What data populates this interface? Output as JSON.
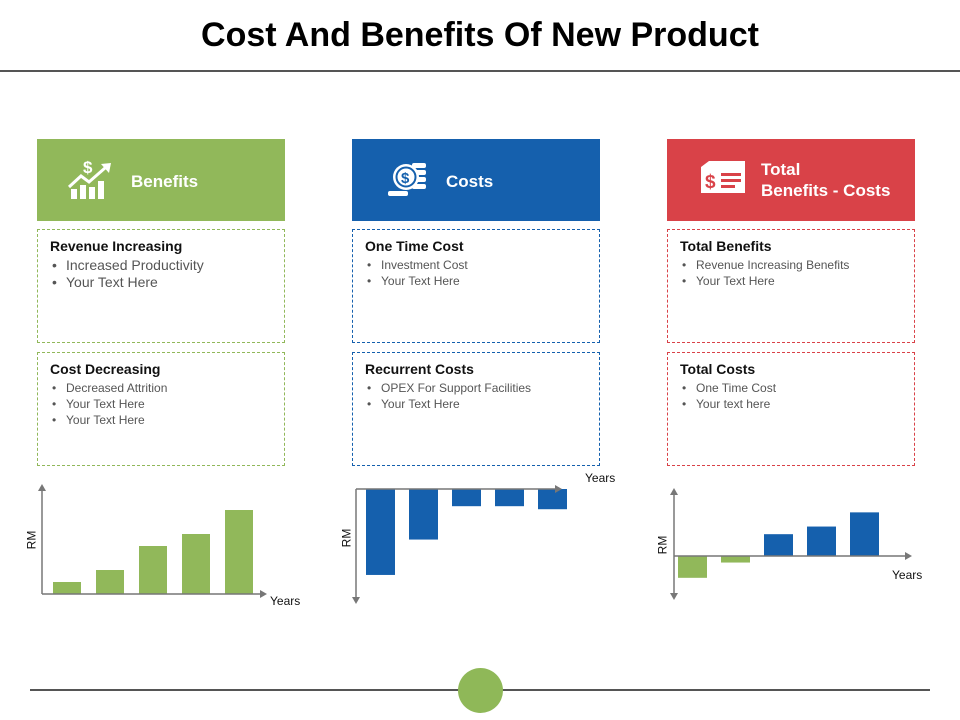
{
  "title": "Cost And Benefits Of New Product",
  "colors": {
    "green": "#91b85a",
    "blue": "#1560ad",
    "red": "#d94248",
    "axis": "#777777"
  },
  "columns": [
    {
      "header": "Benefits",
      "icon": "growth-chart-dollar-icon",
      "boxes": [
        {
          "title": "Revenue Increasing",
          "items": [
            "Increased Productivity",
            "Your Text Here"
          ]
        },
        {
          "title": "Cost Decreasing",
          "items": [
            "Decreased Attrition",
            "Your Text Here",
            "Your Text Here"
          ]
        }
      ]
    },
    {
      "header": "Costs",
      "icon": "coins-stack-dollar-icon",
      "boxes": [
        {
          "title": "One Time Cost",
          "items": [
            "Investment Cost",
            "Your Text Here"
          ]
        },
        {
          "title": "Recurrent Costs",
          "items": [
            "OPEX For Support Facilities",
            "Your Text Here"
          ]
        }
      ]
    },
    {
      "header_line1": "Total",
      "header_line2": "Benefits - Costs",
      "icon": "check-dollar-icon",
      "boxes": [
        {
          "title": "Total Benefits",
          "items": [
            "Revenue  Increasing Benefits",
            "Your Text Here"
          ]
        },
        {
          "title": "Total Costs",
          "items": [
            "One Time Cost",
            "Your text here"
          ]
        }
      ]
    }
  ],
  "chart_data": [
    {
      "type": "bar",
      "xlabel": "Years",
      "ylabel": "RM",
      "values": [
        1,
        2,
        4,
        5,
        7
      ],
      "ylim": [
        0,
        7.5
      ]
    },
    {
      "type": "bar",
      "xlabel": "Years",
      "ylabel": "RM",
      "values": [
        -8.5,
        -5,
        -1.7,
        -1.7,
        -2
      ],
      "ylim": [
        -9,
        0
      ]
    },
    {
      "type": "bar",
      "xlabel": "Years",
      "ylabel": "RM",
      "values": [
        -2,
        -0.6,
        2,
        2.7,
        4
      ],
      "ylim": [
        -3.5,
        5.5
      ]
    }
  ]
}
